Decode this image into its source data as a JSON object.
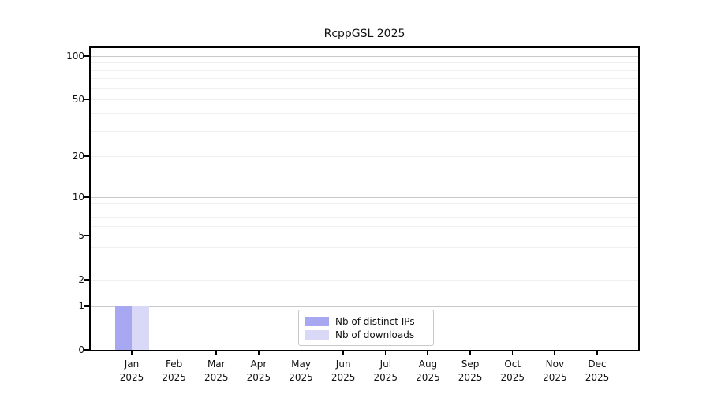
{
  "title": "RcppGSL 2025",
  "chart_data": {
    "type": "bar",
    "title": "RcppGSL 2025",
    "categories": [
      {
        "month": "Jan",
        "year": "2025"
      },
      {
        "month": "Feb",
        "year": "2025"
      },
      {
        "month": "Mar",
        "year": "2025"
      },
      {
        "month": "Apr",
        "year": "2025"
      },
      {
        "month": "May",
        "year": "2025"
      },
      {
        "month": "Jun",
        "year": "2025"
      },
      {
        "month": "Jul",
        "year": "2025"
      },
      {
        "month": "Aug",
        "year": "2025"
      },
      {
        "month": "Sep",
        "year": "2025"
      },
      {
        "month": "Oct",
        "year": "2025"
      },
      {
        "month": "Nov",
        "year": "2025"
      },
      {
        "month": "Dec",
        "year": "2025"
      }
    ],
    "series": [
      {
        "name": "Nb of distinct IPs",
        "color": "#a7a7f2",
        "values": [
          1,
          0,
          0,
          0,
          0,
          0,
          0,
          0,
          0,
          0,
          0,
          0
        ]
      },
      {
        "name": "Nb of downloads",
        "color": "#d9d9f7",
        "values": [
          1,
          0,
          0,
          0,
          0,
          0,
          0,
          0,
          0,
          0,
          0,
          0
        ]
      }
    ],
    "xlabel": "",
    "ylabel": "",
    "yscale": "log1p",
    "ylim": [
      0,
      100
    ],
    "yticks": [
      0,
      1,
      2,
      5,
      10,
      20,
      50,
      100
    ],
    "major_gridlines": [
      1,
      10,
      100
    ],
    "minor_gridlines": [
      2,
      3,
      4,
      5,
      6,
      7,
      8,
      9,
      20,
      30,
      40,
      50,
      60,
      70,
      80,
      90
    ],
    "grid": "horizontal",
    "legend_position": "bottom-center"
  },
  "colors": {
    "axis": "#000000",
    "text": "#111111",
    "major_grid": "#c9c9c9",
    "minor_grid": "#efefef",
    "legend_border": "#c9c9c9",
    "background": "#ffffff"
  }
}
